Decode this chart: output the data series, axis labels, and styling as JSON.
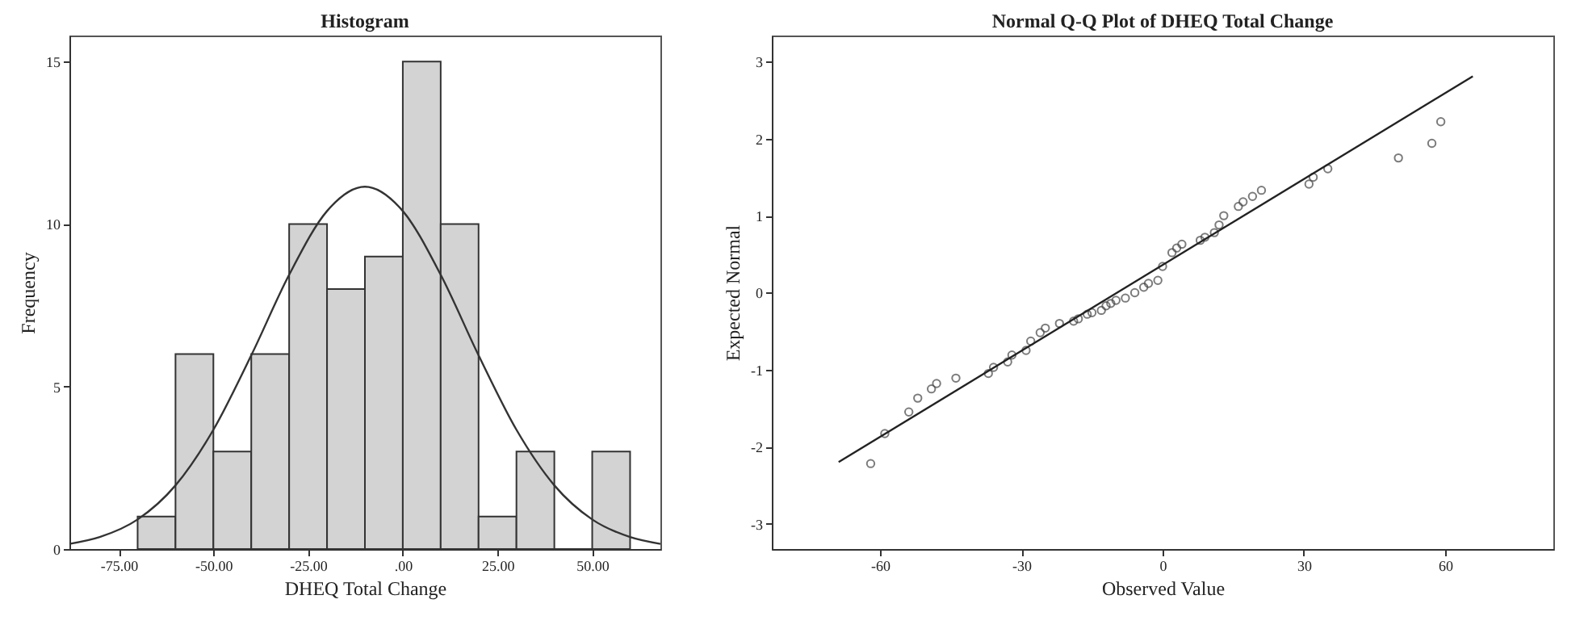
{
  "chart_data": [
    {
      "type": "histogram",
      "title": "Histogram",
      "xlabel": "DHEQ Total Change",
      "ylabel": "Frequency",
      "color": "#d3d3d3",
      "bins": [
        -70,
        -60,
        -50,
        -40,
        -30,
        -20,
        -10,
        0,
        10,
        20,
        30,
        40,
        50,
        60
      ],
      "values": [
        1,
        6,
        3,
        6,
        10,
        8,
        9,
        15,
        10,
        1,
        3,
        0,
        3
      ],
      "series": [
        {
          "type": "line",
          "color": "#333333",
          "x": [
            -88,
            -80,
            -70,
            -60,
            -50,
            -40,
            -30,
            -20,
            -10,
            0,
            10,
            20,
            30,
            40,
            50,
            60,
            68
          ],
          "values": [
            0.16,
            0.37,
            0.91,
            1.96,
            3.67,
            5.96,
            8.44,
            10.4,
            11.15,
            10.4,
            8.44,
            5.96,
            3.67,
            1.96,
            0.91,
            0.37,
            0.16
          ]
        }
      ],
      "xlim": [
        -88,
        68
      ],
      "xticks": [
        {
          "value": -75,
          "label": "-75.00"
        },
        {
          "value": -50,
          "label": "-50.00"
        },
        {
          "value": -25,
          "label": "-25.00"
        },
        {
          "value": 0,
          "label": ".00"
        },
        {
          "value": 25,
          "label": "25.00"
        },
        {
          "value": 50,
          "label": "50.00"
        }
      ],
      "ylim": [
        0,
        15.8
      ],
      "yticks": [
        0,
        5,
        10,
        15
      ],
      "grid": false
    },
    {
      "type": "scatter",
      "title": "Normal Q-Q Plot of DHEQ Total Change",
      "xlabel": "Observed Value",
      "ylabel": "Expected Normal",
      "series": [
        {
          "type": "scatter",
          "marker": "circle",
          "color": "#444444",
          "x": [
            -62,
            -59,
            -53.9,
            -52,
            -49.1,
            -48,
            -43.9,
            -37,
            -35.9,
            -32.9,
            -32,
            -29,
            -28,
            -26,
            -24.9,
            -21.9,
            -18.9,
            -17.9,
            -16,
            -15,
            -13,
            -12,
            -11,
            -9.9,
            -7.9,
            -5.9,
            -4,
            -3,
            -1,
            0,
            2,
            3,
            4.1,
            8,
            9,
            11,
            12,
            13,
            16.1,
            17.1,
            19.1,
            21,
            31.1,
            32,
            35.1,
            50.1,
            57.2,
            59.1
          ],
          "values": [
            -2.22,
            -1.83,
            -1.55,
            -1.37,
            -1.25,
            -1.18,
            -1.11,
            -1.05,
            -0.97,
            -0.9,
            -0.81,
            -0.75,
            -0.63,
            -0.52,
            -0.46,
            -0.4,
            -0.37,
            -0.34,
            -0.28,
            -0.26,
            -0.23,
            -0.17,
            -0.14,
            -0.1,
            -0.07,
            0,
            0.07,
            0.12,
            0.16,
            0.34,
            0.52,
            0.58,
            0.63,
            0.68,
            0.72,
            0.78,
            0.88,
            1,
            1.12,
            1.18,
            1.25,
            1.33,
            1.41,
            1.5,
            1.61,
            1.75,
            1.94,
            2.22
          ]
        },
        {
          "type": "line",
          "color": "#222222",
          "x": [
            -68.8,
            65.9
          ],
          "values": [
            -2.2,
            2.81
          ]
        }
      ],
      "xlim": [
        -83,
        83
      ],
      "xticks": [
        -60,
        -30,
        0,
        30,
        60
      ],
      "ylim": [
        -3.33,
        3.34
      ],
      "yticks": [
        -3,
        -2,
        -1,
        0,
        1,
        2,
        3
      ],
      "grid": false
    }
  ]
}
